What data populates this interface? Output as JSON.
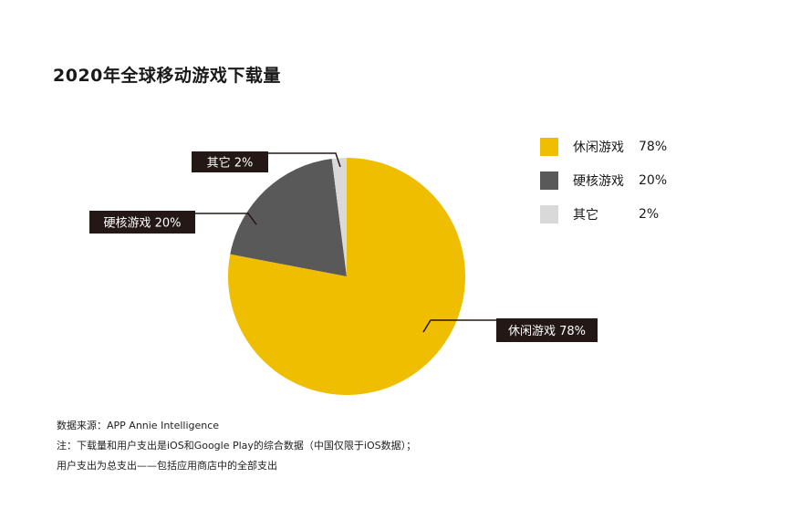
{
  "title": "2020年全球移动游戏下载量",
  "chart_data": {
    "type": "pie",
    "title": "2020年全球移动游戏下载量",
    "slices": [
      {
        "name": "休闲游戏",
        "value": 78,
        "label": "78%",
        "color": "#F0BE00"
      },
      {
        "name": "硬核游戏",
        "value": 20,
        "label": "20%",
        "color": "#595959"
      },
      {
        "name": "其它",
        "value": 2,
        "label": "2%",
        "color": "#D9D9D9"
      }
    ],
    "callouts": [
      "休闲游戏 78%",
      "硬核游戏 20%",
      "其它 2%"
    ],
    "legend_position": "right"
  },
  "notes": [
    "数据来源：APP Annie Intelligence",
    "注：下载量和用户支出是iOS和Google Play的综合数据（中国仅限于iOS数据）；",
    "用户支出为总支出——包括应用商店中的全部支出"
  ],
  "colors": {
    "callout_bg": "#231815",
    "callout_text": "#ffffff"
  }
}
